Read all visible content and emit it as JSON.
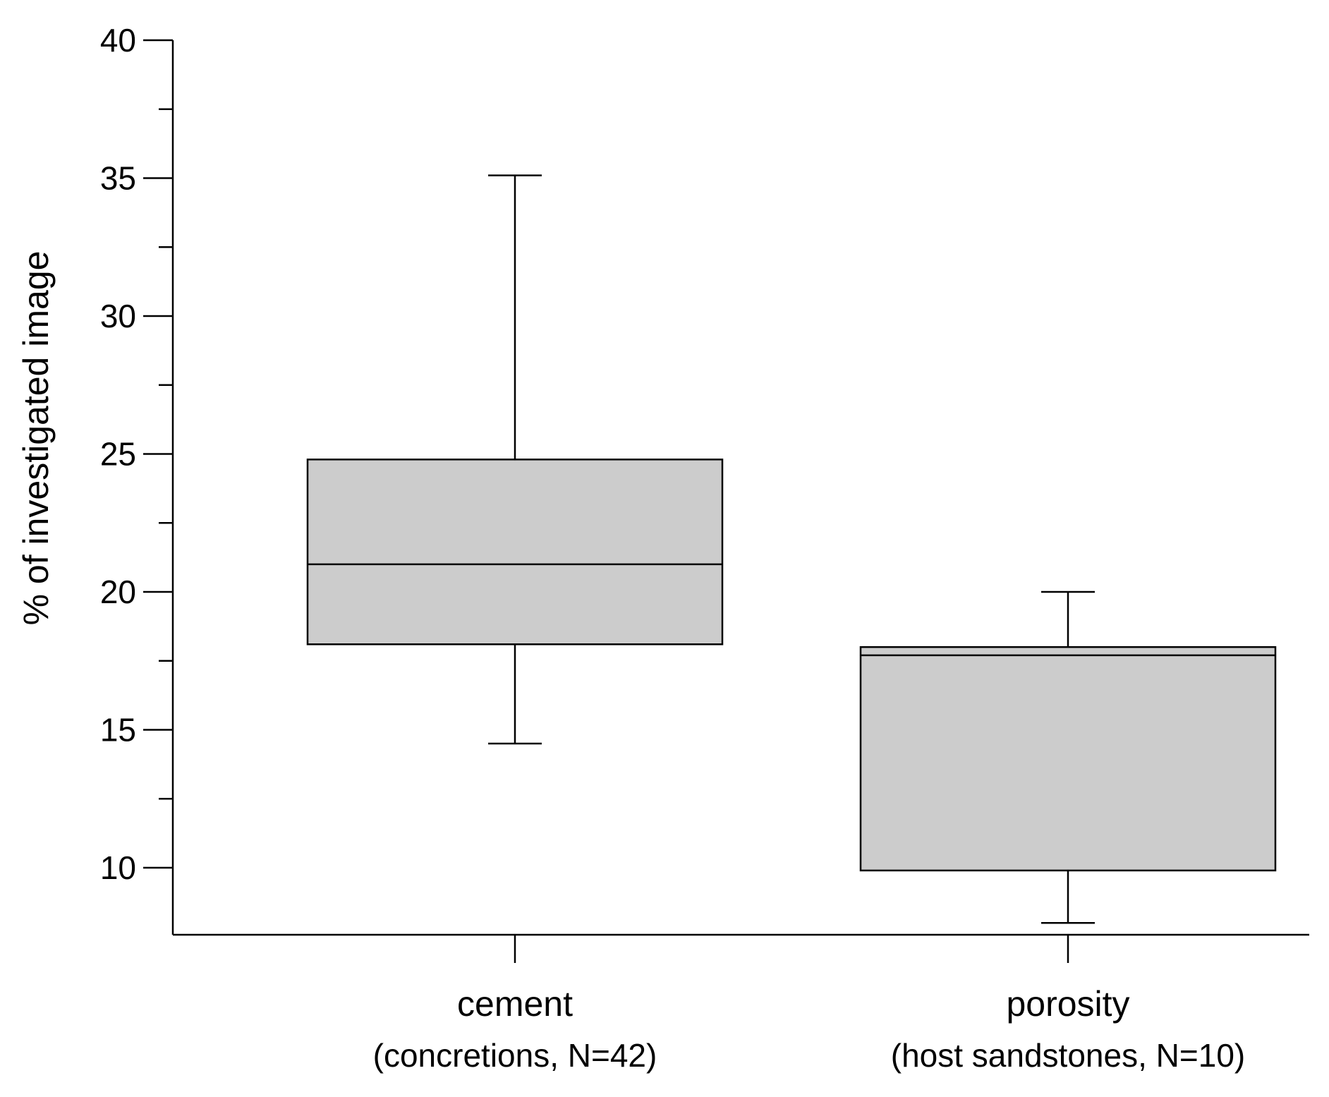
{
  "chart_data": {
    "type": "box",
    "ylabel": "% of investigated image",
    "xlabel": "",
    "ylim": [
      7.7,
      40
    ],
    "yticks_major": [
      10,
      15,
      20,
      25,
      30,
      35,
      40
    ],
    "yticks_minor": [
      12.5,
      17.5,
      22.5,
      27.5,
      32.5,
      37.5
    ],
    "grid": false,
    "box_fill": "#cccccc",
    "line_color": "#000000",
    "categories": [
      {
        "label": "cement",
        "sublabel": "(concretions, N=42)",
        "min": 14.5,
        "q1": 18.1,
        "median": 21.0,
        "q3": 24.8,
        "max": 35.1
      },
      {
        "label": "porosity",
        "sublabel": "(host sandstones, N=10)",
        "min": 8.0,
        "q1": 9.9,
        "median": 17.7,
        "q3": 18.0,
        "max": 20.0
      }
    ]
  }
}
